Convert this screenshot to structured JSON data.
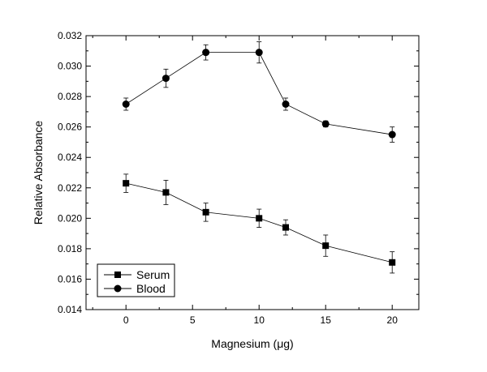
{
  "chart_data": {
    "type": "line",
    "xlabel": "Magnesium (μg)",
    "ylabel": "Relative Absorbance",
    "xlim": [
      -3,
      22
    ],
    "ylim": [
      0.014,
      0.032
    ],
    "x_ticks": [
      0,
      5,
      10,
      15,
      20
    ],
    "x_tick_labels": [
      "0",
      "5",
      "10",
      "15",
      "20"
    ],
    "y_ticks": [
      0.014,
      0.016,
      0.018,
      0.02,
      0.022,
      0.024,
      0.026,
      0.028,
      0.03,
      0.032
    ],
    "y_tick_labels": [
      "0.014",
      "0.016",
      "0.018",
      "0.020",
      "0.022",
      "0.024",
      "0.026",
      "0.028",
      "0.030",
      "0.032"
    ],
    "grid": false,
    "legend_position": "bottom-left",
    "x": [
      0,
      3,
      6,
      10,
      12,
      15,
      20
    ],
    "series": [
      {
        "name": "Serum",
        "marker": "square",
        "values": [
          0.0223,
          0.0217,
          0.0204,
          0.02,
          0.0194,
          0.0182,
          0.0171
        ],
        "errors": [
          0.0006,
          0.0008,
          0.0006,
          0.0006,
          0.0005,
          0.0007,
          0.0007
        ]
      },
      {
        "name": "Blood",
        "marker": "circle",
        "values": [
          0.0275,
          0.0292,
          0.0309,
          0.0309,
          0.0275,
          0.0262,
          0.0255
        ],
        "errors": [
          0.0004,
          0.0006,
          0.0005,
          0.0007,
          0.0004,
          0.0002,
          0.0005
        ]
      }
    ]
  }
}
